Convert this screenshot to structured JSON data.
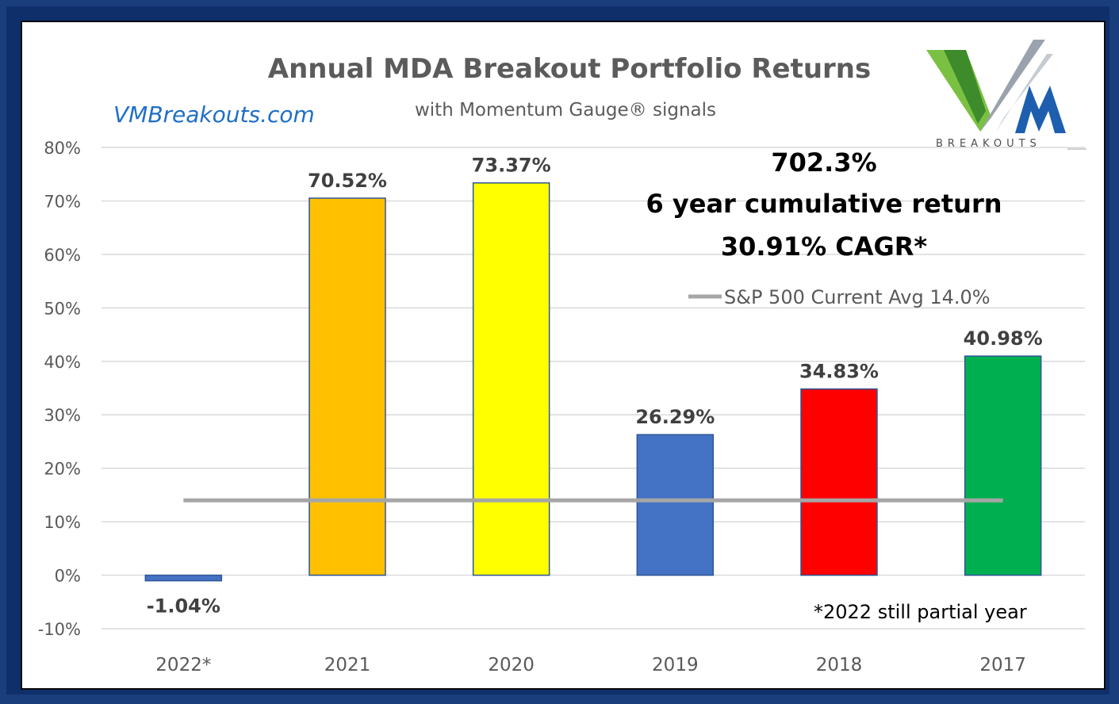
{
  "website": "VMBreakouts.com",
  "logo": {
    "icon": "vm-breakouts-logo-icon",
    "wordmark": "BREAKOUTS"
  },
  "chart_data": {
    "type": "bar",
    "title": "Annual MDA Breakout Portfolio Returns",
    "subtitle": "with Momentum Gauge® signals",
    "categories": [
      "2022*",
      "2021",
      "2020",
      "2019",
      "2018",
      "2017"
    ],
    "values": [
      -1.04,
      70.52,
      73.37,
      26.29,
      34.83,
      40.98
    ],
    "value_labels": [
      "-1.04%",
      "70.52%",
      "73.37%",
      "26.29%",
      "34.83%",
      "40.98%"
    ],
    "bar_colors": [
      "#4472c4",
      "#ffc000",
      "#ffff00",
      "#4472c4",
      "#ff0000",
      "#00b050"
    ],
    "ylim": [
      -10,
      80
    ],
    "yticks": [
      80,
      70,
      60,
      50,
      40,
      30,
      20,
      10,
      0,
      -10
    ],
    "ytick_labels": [
      "80%",
      "70%",
      "60%",
      "50%",
      "40%",
      "30%",
      "20%",
      "10%",
      "0%",
      "-10%"
    ],
    "grid": true,
    "reference_line": {
      "name": "S&P 500 Current Avg 14.0%",
      "value": 14.0,
      "color": "#a6a6a6"
    },
    "legend_position": "top-right",
    "annotations": {
      "cumulative": "702.3%",
      "cumulative_text": "6 year cumulative return",
      "cagr": "30.91% CAGR*",
      "footnote": "*2022 still partial year"
    }
  }
}
